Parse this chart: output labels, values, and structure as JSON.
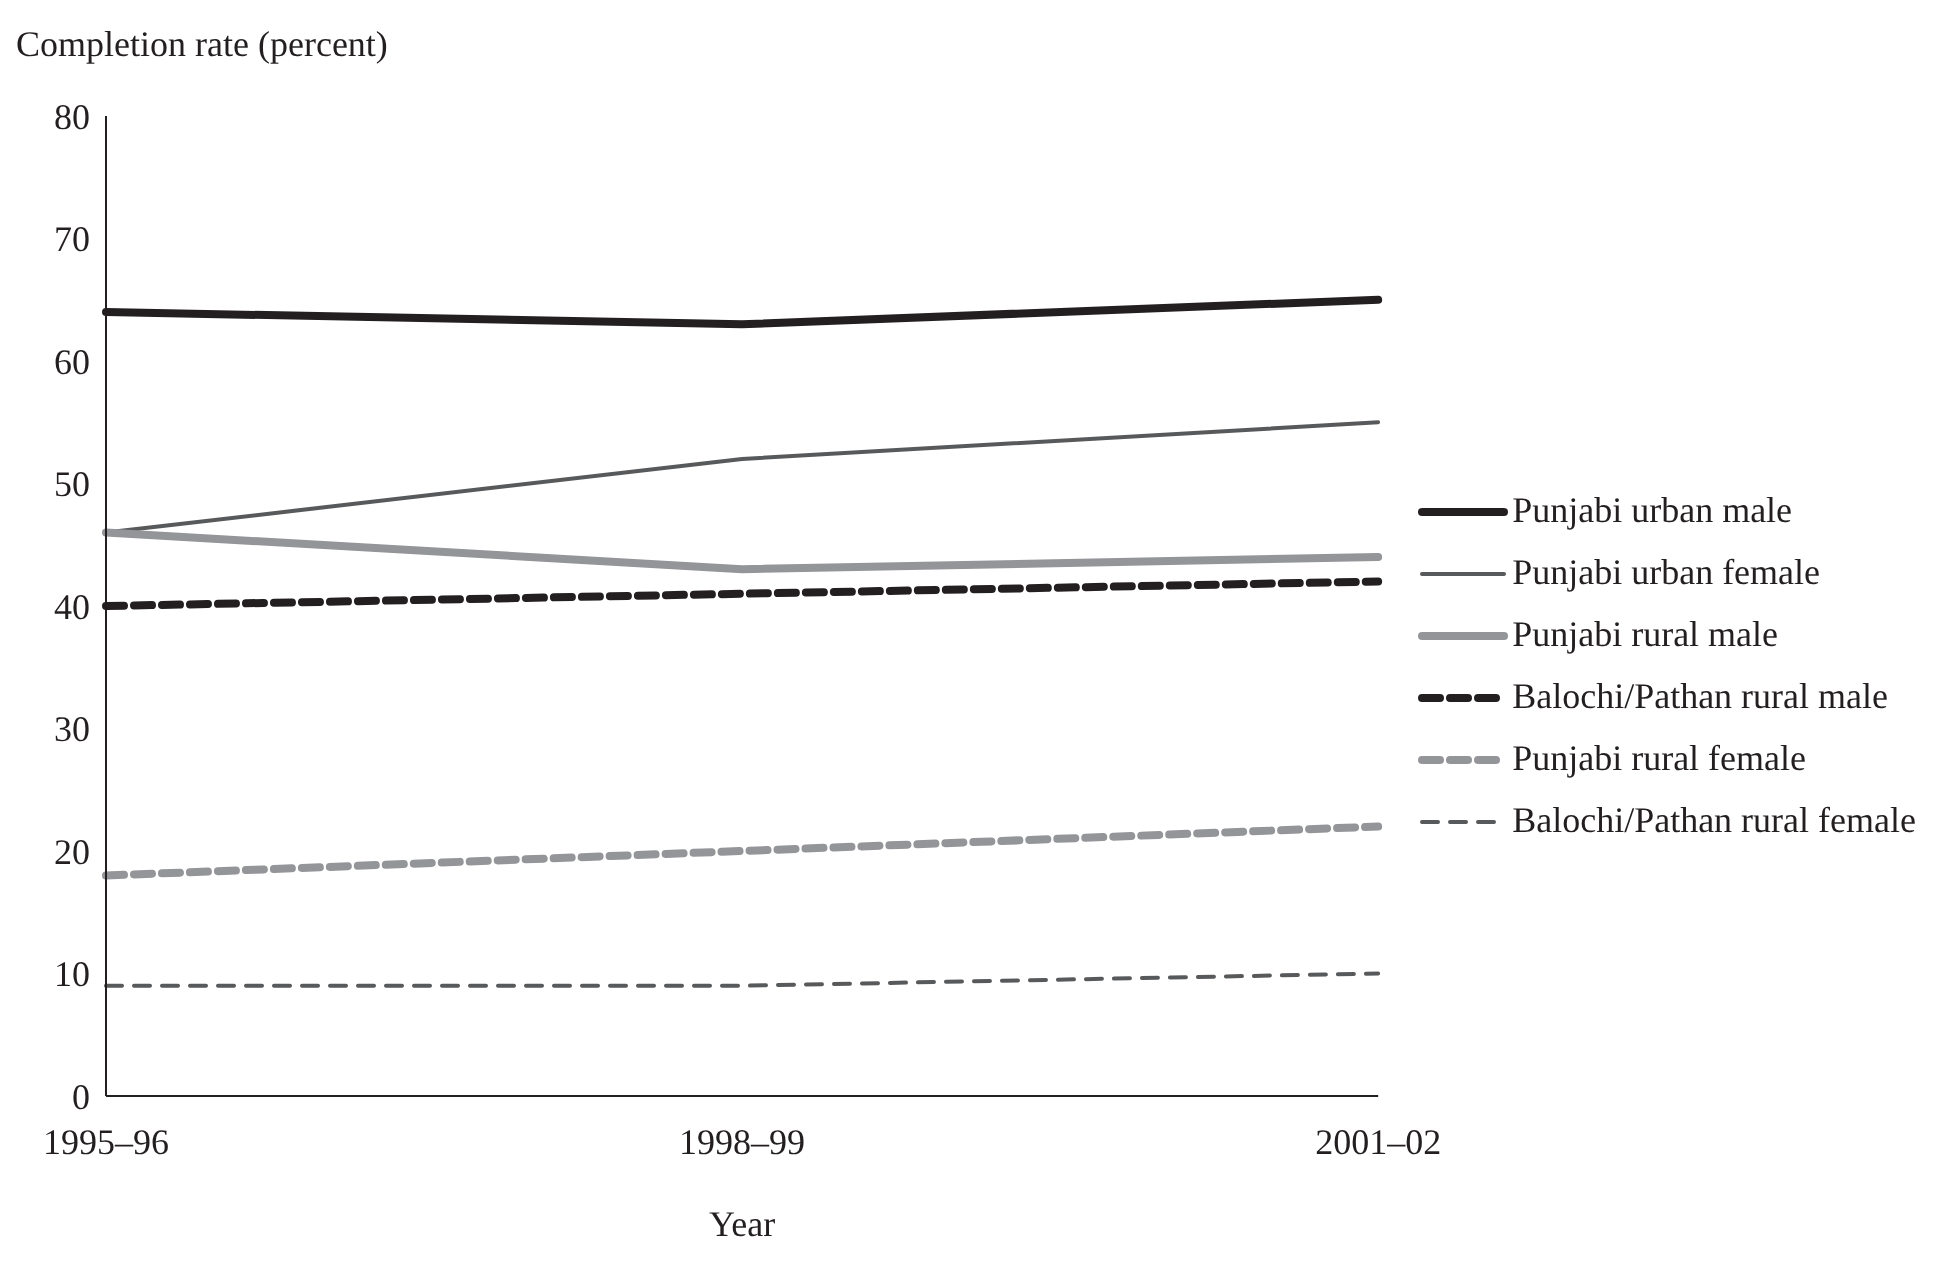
{
  "chart_data": {
    "type": "line",
    "xlabel": "Year",
    "ylabel": "Completion rate (percent)",
    "categories": [
      "1995–96",
      "1998–99",
      "2001–02"
    ],
    "series": [
      {
        "name": "Punjabi urban male",
        "color": "#231f20",
        "line_style": "solid",
        "values": [
          64,
          63,
          65
        ]
      },
      {
        "name": "Punjabi urban female",
        "color": "#58595b",
        "line_style": "solid",
        "values": [
          46,
          52,
          55
        ]
      },
      {
        "name": "Punjabi rural male",
        "color": "#939598",
        "line_style": "solid",
        "values": [
          46,
          43,
          44
        ]
      },
      {
        "name": "Balochi/Pathan rural male",
        "color": "#231f20",
        "line_style": "dashed",
        "values": [
          40,
          41,
          42
        ]
      },
      {
        "name": "Punjabi rural female",
        "color": "#939598",
        "line_style": "dashed",
        "values": [
          18,
          20,
          22
        ]
      },
      {
        "name": "Balochi/Pathan rural female",
        "color": "#58595b",
        "line_style": "dashed",
        "values": [
          9,
          9,
          10
        ]
      }
    ],
    "ylim": [
      0,
      80
    ],
    "yticks": [
      0,
      10,
      20,
      30,
      40,
      50,
      60,
      70,
      80
    ],
    "grid": false,
    "legend": "right",
    "marker": "none"
  }
}
